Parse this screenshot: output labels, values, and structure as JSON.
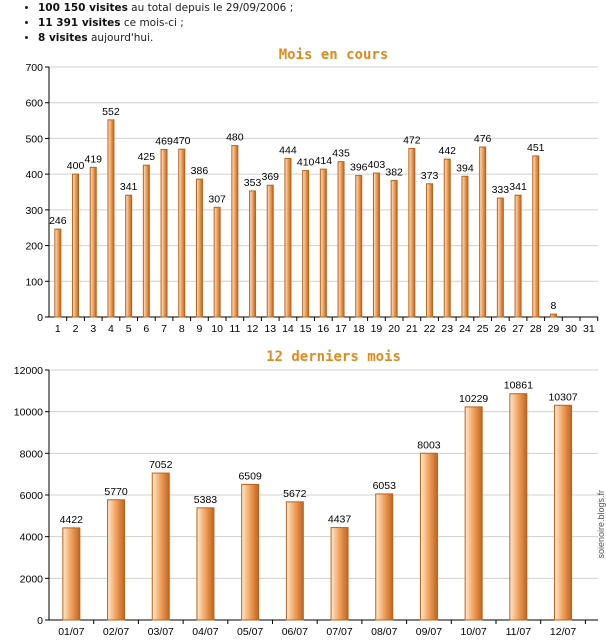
{
  "summary": {
    "items": [
      {
        "bold": "100 150 visites",
        "rest": " au total depuis le 29/09/2006 ;"
      },
      {
        "bold": "11 391 visites",
        "rest": " ce mois-ci ;"
      },
      {
        "bold": "8 visites",
        "rest": " aujourd'hui."
      }
    ]
  },
  "watermark": "soienoire.blogs.fr",
  "colors": {
    "title": "#e08a1e",
    "bar_edge": "#b5651d",
    "bar_light": "#fde9d2",
    "bar_mid": "#f3a765",
    "bar_dark": "#c2631d",
    "grid": "#d0d0d0"
  },
  "chart_data": [
    {
      "type": "bar",
      "title": "Mois en cours",
      "categories": [
        "1",
        "2",
        "3",
        "4",
        "5",
        "6",
        "7",
        "8",
        "9",
        "10",
        "11",
        "12",
        "13",
        "14",
        "15",
        "16",
        "17",
        "18",
        "19",
        "20",
        "21",
        "22",
        "23",
        "24",
        "25",
        "26",
        "27",
        "28",
        "29",
        "30",
        "31"
      ],
      "values": [
        246,
        400,
        419,
        552,
        341,
        425,
        469,
        470,
        386,
        307,
        480,
        353,
        369,
        444,
        410,
        414,
        435,
        396,
        403,
        382,
        472,
        373,
        442,
        394,
        476,
        333,
        341,
        451,
        8,
        null,
        null
      ],
      "labels": [
        "246",
        "400",
        "419",
        "552",
        "341",
        "425",
        "469",
        "470",
        "386",
        "307",
        "480",
        "353",
        "369",
        "444",
        "410",
        "414",
        "435",
        "396",
        "403",
        "382",
        "472",
        "373",
        "442",
        "394",
        "476",
        "333",
        "341",
        "451",
        "8",
        "",
        ""
      ],
      "yticks": [
        "0",
        "100",
        "200",
        "300",
        "400",
        "500",
        "600",
        "700"
      ],
      "ylim": [
        0,
        700
      ],
      "grid": true
    },
    {
      "type": "bar",
      "title": "12 derniers mois",
      "categories": [
        "01/07",
        "02/07",
        "03/07",
        "04/07",
        "05/07",
        "06/07",
        "07/07",
        "08/07",
        "09/07",
        "10/07",
        "11/07",
        "12/07"
      ],
      "values": [
        4422,
        5770,
        7052,
        5383,
        6509,
        5672,
        4437,
        6053,
        8003,
        10229,
        10861,
        10307
      ],
      "labels": [
        "4422",
        "5770",
        "7052",
        "5383",
        "6509",
        "5672",
        "4437",
        "6053",
        "8003",
        "10229",
        "10861",
        "10307"
      ],
      "yticks": [
        "0",
        "2000",
        "4000",
        "6000",
        "8000",
        "10000",
        "12000"
      ],
      "ylim": [
        0,
        12000
      ],
      "grid": true
    }
  ]
}
